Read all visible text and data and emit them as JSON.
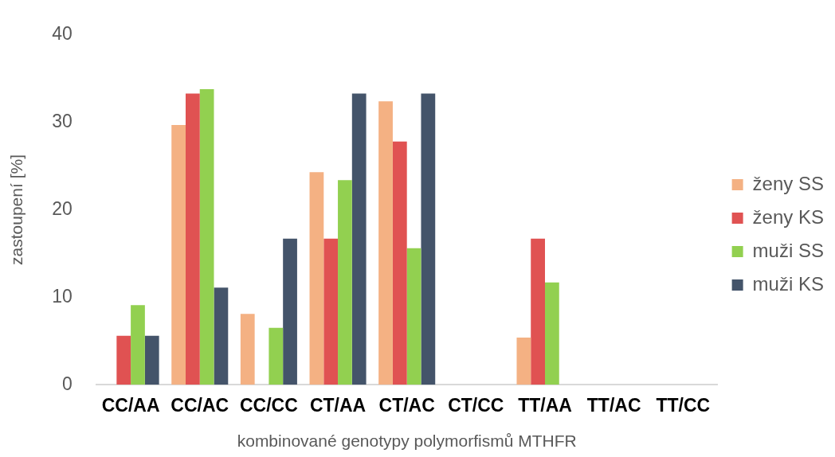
{
  "chart_data": {
    "type": "bar",
    "xlabel": "kombinované genotypy polymorfismů MTHFR",
    "ylabel": "zastoupení [%]",
    "categories": [
      "CC/AA",
      "CC/AC",
      "CC/CC",
      "CT/AA",
      "CT/AC",
      "CT/CC",
      "TT/AA",
      "TT/AC",
      "TT/CC"
    ],
    "series": [
      {
        "name": "ženy SS",
        "color": "#f4b183",
        "values": [
          0,
          29.7,
          8.1,
          24.3,
          32.4,
          0,
          5.4,
          0,
          0
        ]
      },
      {
        "name": "ženy KS",
        "color": "#e05252",
        "values": [
          5.6,
          33.3,
          0,
          16.7,
          27.8,
          0,
          16.7,
          0,
          0
        ]
      },
      {
        "name": "muži SS",
        "color": "#92d050",
        "values": [
          9.1,
          33.8,
          6.5,
          23.4,
          15.6,
          0,
          11.7,
          0,
          0
        ]
      },
      {
        "name": "muži KS",
        "color": "#44546a",
        "values": [
          5.6,
          11.1,
          16.7,
          33.3,
          33.3,
          0,
          0,
          0,
          0
        ]
      }
    ],
    "ylim": [
      0,
      40
    ],
    "yticks": [
      0,
      10,
      20,
      30,
      40
    ],
    "grid": false,
    "legend": "right"
  }
}
